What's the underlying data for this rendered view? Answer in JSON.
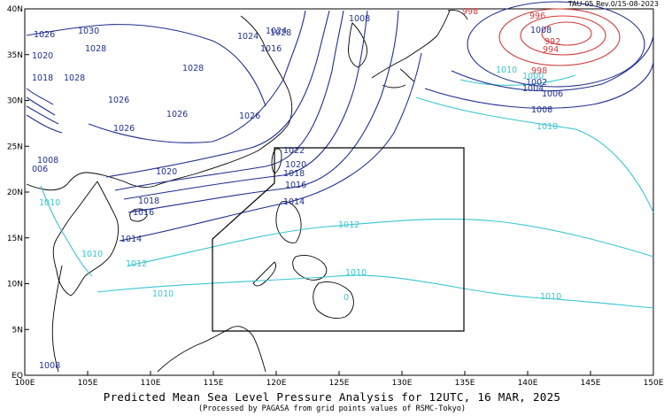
{
  "revision_label": "TAU-05 Rev.0/15-08-2023",
  "caption": {
    "title": "Predicted Mean Sea Level Pressure Analysis for 12UTC, 16 MAR, 2025",
    "subtitle": "(Processed by PAGASA from grid points values of RSMC-Tokyo)"
  },
  "axes": {
    "x_ticks": [
      "100E",
      "105E",
      "110E",
      "115E",
      "120E",
      "125E",
      "130E",
      "135E",
      "140E",
      "145E",
      "150E"
    ],
    "y_ticks": [
      "EQ",
      "5N",
      "10N",
      "15N",
      "20N",
      "25N",
      "30N",
      "35N",
      "40N"
    ],
    "lon_range": [
      100,
      150
    ],
    "lat_range": [
      0,
      40
    ]
  },
  "colors": {
    "high_pressure": "#1f2f8f",
    "mid_pressure": "#38c6d2",
    "low_pressure": "#d43b3b",
    "coastline": "#000000"
  },
  "isobar_labels": [
    {
      "text": "1026",
      "color": "high"
    },
    {
      "text": "1030",
      "color": "high"
    },
    {
      "text": "1028",
      "color": "high"
    },
    {
      "text": "1020",
      "color": "high"
    },
    {
      "text": "1028",
      "color": "high"
    },
    {
      "text": "1018",
      "color": "high"
    },
    {
      "text": "1026",
      "color": "high"
    },
    {
      "text": "1024",
      "color": "high"
    },
    {
      "text": "1026",
      "color": "high"
    },
    {
      "text": "1028",
      "color": "high"
    },
    {
      "text": "1026",
      "color": "high"
    },
    {
      "text": "1028",
      "color": "high"
    },
    {
      "text": "1026",
      "color": "high"
    },
    {
      "text": "1024",
      "color": "high"
    },
    {
      "text": "1008",
      "color": "high"
    },
    {
      "text": "1008",
      "color": "high"
    },
    {
      "text": "006",
      "color": "high"
    },
    {
      "text": "1020",
      "color": "high"
    },
    {
      "text": "1022",
      "color": "high"
    },
    {
      "text": "1020",
      "color": "high"
    },
    {
      "text": "1018",
      "color": "high"
    },
    {
      "text": "1016",
      "color": "high"
    },
    {
      "text": "1018",
      "color": "high"
    },
    {
      "text": "1016",
      "color": "high"
    },
    {
      "text": "1014",
      "color": "high"
    },
    {
      "text": "1014",
      "color": "high"
    },
    {
      "text": "1012",
      "color": "mid"
    },
    {
      "text": "1012",
      "color": "mid"
    },
    {
      "text": "1010",
      "color": "mid"
    },
    {
      "text": "1010",
      "color": "mid"
    },
    {
      "text": "1010",
      "color": "mid"
    },
    {
      "text": "1010",
      "color": "mid"
    },
    {
      "text": "1010",
      "color": "mid"
    },
    {
      "text": "1010",
      "color": "mid"
    },
    {
      "text": "1008",
      "color": "high"
    },
    {
      "text": "1008",
      "color": "high"
    },
    {
      "text": "1006",
      "color": "high"
    },
    {
      "text": "1004",
      "color": "high"
    },
    {
      "text": "1002",
      "color": "high"
    },
    {
      "text": "1000",
      "color": "mid"
    },
    {
      "text": "998",
      "color": "low"
    },
    {
      "text": "998",
      "color": "low"
    },
    {
      "text": "996",
      "color": "low"
    },
    {
      "text": "994",
      "color": "low"
    },
    {
      "text": "992",
      "color": "low"
    },
    {
      "text": "1008",
      "color": "high"
    },
    {
      "text": "1010",
      "color": "mid"
    },
    {
      "text": "1016",
      "color": "high"
    },
    {
      "text": "0",
      "color": "mid"
    }
  ]
}
